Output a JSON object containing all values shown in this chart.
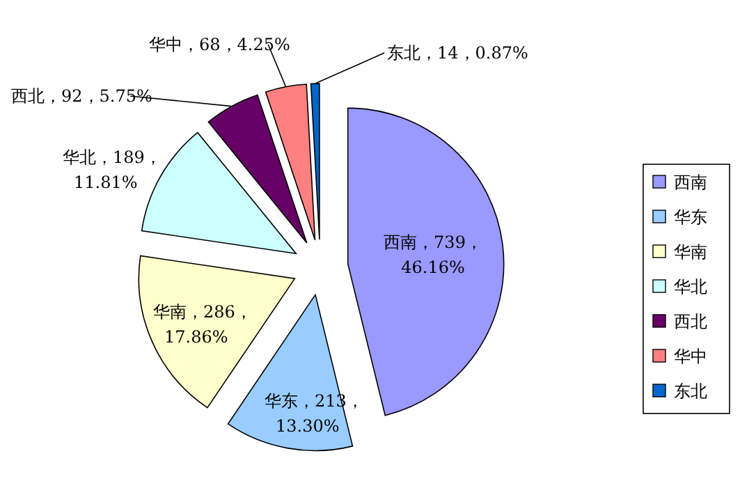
{
  "chart_data": {
    "type": "pie",
    "categories": [
      "西南",
      "华东",
      "华南",
      "华北",
      "西北",
      "华中",
      "东北"
    ],
    "values": [
      739,
      213,
      286,
      189,
      92,
      68,
      14
    ],
    "value_labels": [
      "西南，739，46.16%",
      "华东，213，13.30%",
      "华南，286，17.86%",
      "华北，189，11.81%",
      "西北，92，5.75%",
      "华中，68，4.25%",
      "东北，14，0.87%"
    ],
    "colors": [
      "#9999ff",
      "#99ccff",
      "#ffffcc",
      "#ccffff",
      "#660066",
      "#ff8080",
      "#0066cc"
    ],
    "legend": "right"
  }
}
